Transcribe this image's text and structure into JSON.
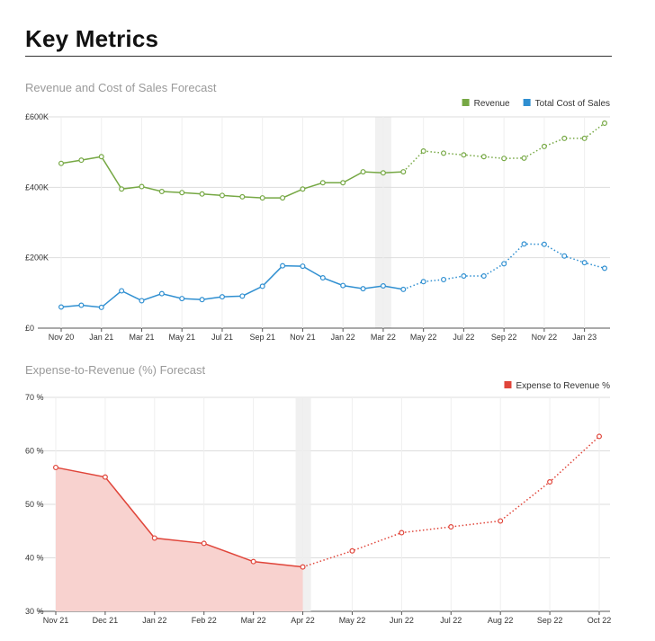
{
  "page": {
    "title": "Key Metrics"
  },
  "chart_data": [
    {
      "type": "line",
      "title": "Revenue and Cost of Sales Forecast",
      "x": [
        "Nov 20",
        "Dec 20",
        "Jan 21",
        "Feb 21",
        "Mar 21",
        "Apr 21",
        "May 21",
        "Jun 21",
        "Jul 21",
        "Aug 21",
        "Sep 21",
        "Oct 21",
        "Nov 21",
        "Dec 21",
        "Jan 22",
        "Feb 22",
        "Mar 22",
        "Apr 22",
        "May 22",
        "Jun 22",
        "Jul 22",
        "Aug 22",
        "Sep 22",
        "Oct 22",
        "Nov 22",
        "Dec 22",
        "Jan 23",
        "Feb 23"
      ],
      "x_tick_labels": [
        "Nov 20",
        "Jan 21",
        "Mar 21",
        "May 21",
        "Jul 21",
        "Sep 21",
        "Nov 21",
        "Jan 22",
        "Mar 22",
        "May 22",
        "Jul 22",
        "Sep 22",
        "Nov 22",
        "Jan 23"
      ],
      "y_tick_labels": [
        "£0",
        "£200K",
        "£400K",
        "£600K"
      ],
      "ylim": [
        0,
        600000
      ],
      "forecast_start_index": 17,
      "legend_position": "top-right",
      "grid": true,
      "series": [
        {
          "name": "Revenue",
          "color": "#76a844",
          "values": [
            468000,
            477000,
            487000,
            395000,
            402000,
            388000,
            385000,
            381000,
            377000,
            373000,
            370000,
            370000,
            395000,
            413000,
            413000,
            444000,
            441000,
            444000,
            503000,
            497000,
            492000,
            487000,
            482000,
            483000,
            516000,
            539000,
            539000,
            582000
          ]
        },
        {
          "name": "Total Cost of Sales",
          "color": "#2f8fd1",
          "values": [
            60000,
            65000,
            59000,
            106000,
            78000,
            98000,
            84000,
            81000,
            89000,
            91000,
            119000,
            177000,
            176000,
            143000,
            121000,
            112000,
            120000,
            110000,
            132000,
            138000,
            148000,
            148000,
            183000,
            239000,
            238000,
            205000,
            186000,
            170000
          ]
        }
      ]
    },
    {
      "type": "area",
      "title": "Expense-to-Revenue (%) Forecast",
      "x": [
        "Nov 21",
        "Dec 21",
        "Jan 22",
        "Feb 22",
        "Mar 22",
        "Apr 22",
        "May 22",
        "Jun 22",
        "Jul 22",
        "Aug 22",
        "Sep 22",
        "Oct 22"
      ],
      "y_tick_labels": [
        "30 %",
        "40 %",
        "50 %",
        "60 %",
        "70 %"
      ],
      "ylim": [
        30,
        70
      ],
      "forecast_start_index": 5,
      "legend_position": "top-right",
      "grid": true,
      "series": [
        {
          "name": "Expense to Revenue %",
          "color": "#e0453a",
          "fill": "#f8d2cf",
          "values": [
            56.9,
            55.1,
            43.7,
            42.7,
            39.3,
            38.3,
            41.3,
            44.7,
            45.8,
            46.9,
            54.2,
            62.7
          ]
        }
      ]
    }
  ]
}
